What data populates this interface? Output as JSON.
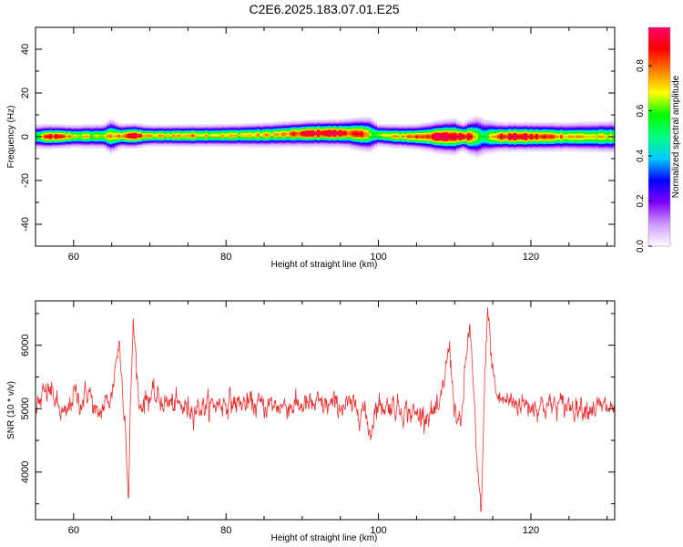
{
  "title": "C2E6.2025.183.07.01.E25",
  "chart_data": [
    {
      "type": "heatmap",
      "name": "spectrogram",
      "xlabel": "Height of straight line (km)",
      "ylabel": "Frequency (Hz)",
      "xlim": [
        55,
        131
      ],
      "ylim": [
        -50,
        50
      ],
      "xticks": [
        60,
        80,
        100,
        120
      ],
      "yticks": [
        40,
        20,
        0,
        -20,
        -40
      ],
      "colorbar": {
        "label": "Normalized spectral amplitude",
        "range": [
          0,
          0.97
        ],
        "ticks": [
          0.0,
          0.2,
          0.4,
          0.6,
          0.8
        ],
        "colors": [
          "#ffffff",
          "#cc99ff",
          "#8000ff",
          "#0000ff",
          "#00ccff",
          "#00ff80",
          "#00ff00",
          "#ffff00",
          "#ff8000",
          "#ff0000",
          "#ff0066"
        ]
      },
      "ridge_center_hz": [
        [
          55,
          0
        ],
        [
          60,
          0.2
        ],
        [
          65,
          0.3
        ],
        [
          70,
          0.5
        ],
        [
          75,
          0.5
        ],
        [
          80,
          0.6
        ],
        [
          85,
          0.8
        ],
        [
          88,
          1.2
        ],
        [
          92,
          1.6
        ],
        [
          96,
          1.6
        ],
        [
          99,
          1.0
        ],
        [
          102,
          0.3
        ],
        [
          105,
          0
        ],
        [
          110,
          0
        ],
        [
          113,
          0
        ],
        [
          115,
          0
        ],
        [
          120,
          0
        ],
        [
          125,
          0
        ],
        [
          131,
          0
        ]
      ],
      "peak_amplitude": [
        [
          55,
          0.55
        ],
        [
          57,
          0.9
        ],
        [
          60,
          0.7
        ],
        [
          63,
          0.65
        ],
        [
          66,
          0.75
        ],
        [
          67.5,
          0.95
        ],
        [
          70,
          0.7
        ],
        [
          75,
          0.75
        ],
        [
          80,
          0.7
        ],
        [
          85,
          0.72
        ],
        [
          88,
          0.75
        ],
        [
          90,
          0.88
        ],
        [
          92,
          0.95
        ],
        [
          94,
          0.95
        ],
        [
          96,
          0.88
        ],
        [
          98,
          0.8
        ],
        [
          99,
          0.65
        ],
        [
          100,
          0.62
        ],
        [
          102,
          0.7
        ],
        [
          104,
          0.78
        ],
        [
          106,
          0.85
        ],
        [
          108,
          0.95
        ],
        [
          110,
          0.95
        ],
        [
          112,
          0.92
        ],
        [
          113,
          0.7
        ],
        [
          114,
          0.5
        ],
        [
          115,
          0.75
        ],
        [
          116,
          0.85
        ],
        [
          118,
          0.95
        ],
        [
          120,
          0.88
        ],
        [
          125,
          0.75
        ],
        [
          131,
          0.65
        ]
      ],
      "width_hz": [
        [
          55,
          3.5
        ],
        [
          60,
          3.2
        ],
        [
          64,
          3.5
        ],
        [
          65,
          5
        ],
        [
          66,
          3.5
        ],
        [
          68,
          3.5
        ],
        [
          70,
          3
        ],
        [
          80,
          3.2
        ],
        [
          88,
          3.6
        ],
        [
          95,
          3.8
        ],
        [
          99,
          5
        ],
        [
          100,
          3.2
        ],
        [
          105,
          3.5
        ],
        [
          108,
          4.5
        ],
        [
          110,
          5
        ],
        [
          111,
          3.8
        ],
        [
          113,
          6
        ],
        [
          114,
          5
        ],
        [
          116,
          4
        ],
        [
          120,
          4
        ],
        [
          125,
          4
        ],
        [
          131,
          4.5
        ]
      ]
    },
    {
      "type": "line",
      "name": "snr",
      "xlabel": "Height of straight line (km)",
      "ylabel": "SNR (10 * v/v)",
      "xlim": [
        55,
        131
      ],
      "ylim": [
        3250,
        6700
      ],
      "xticks": [
        60,
        80,
        100,
        120
      ],
      "yticks": [
        4000,
        5000,
        6000
      ],
      "line_color": "#e83030",
      "series": [
        {
          "values_x": [
            55,
            56,
            57,
            58,
            59,
            60,
            61,
            62,
            63,
            64,
            65,
            65.6,
            66,
            66.3,
            66.8,
            67.2,
            67.5,
            67.8,
            68.2,
            68.6,
            69,
            70,
            72,
            75,
            78,
            80,
            85,
            90,
            95,
            98,
            99,
            99.5,
            100,
            102,
            105,
            108,
            109.3,
            110,
            110.8,
            111.5,
            112,
            112.5,
            113,
            113.5,
            114,
            114.3,
            114.8,
            115.5,
            116,
            118,
            120,
            125,
            131
          ],
          "values_y": [
            4950,
            5200,
            5300,
            5000,
            4850,
            5250,
            5100,
            5300,
            4850,
            5050,
            5200,
            5800,
            6050,
            5500,
            4800,
            3500,
            5200,
            6350,
            5800,
            5000,
            5100,
            5200,
            5100,
            5000,
            5050,
            5100,
            5050,
            5050,
            5050,
            5000,
            4600,
            5000,
            5050,
            5050,
            4900,
            4950,
            6000,
            5000,
            4650,
            5800,
            6350,
            5200,
            3900,
            3400,
            5600,
            6650,
            5800,
            5200,
            5150,
            5100,
            5050,
            5050,
            5000
          ],
          "noise_std": 180
        }
      ]
    }
  ]
}
